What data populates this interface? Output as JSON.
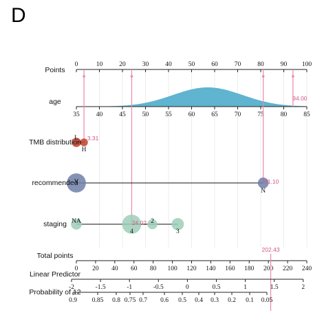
{
  "panel_label": "D",
  "chart_data": {
    "type": "nomogram",
    "rows": {
      "points": {
        "label": "Points",
        "ticks": [
          0,
          10,
          20,
          30,
          40,
          50,
          60,
          70,
          80,
          90,
          100
        ]
      },
      "age": {
        "label": "age",
        "ticks": [
          35,
          40,
          45,
          50,
          55,
          60,
          65,
          70,
          75,
          80,
          85
        ],
        "range": [
          35,
          85
        ],
        "density_mean": 63.5,
        "density_sd": 7.5,
        "value": "94.00",
        "value_points": 94
      },
      "tmb": {
        "label": "TMB distribution",
        "levels": [
          {
            "name": "L",
            "points": 0,
            "weight": 0.25
          },
          {
            "name": "H",
            "points": 3.31,
            "weight": 0.15
          }
        ],
        "value": "3.31",
        "value_points": 3.31
      },
      "recommended": {
        "label": "recommended",
        "levels": [
          {
            "name": "Y",
            "points": 0,
            "weight": 0.9
          },
          {
            "name": "N",
            "points": 81.1,
            "weight": 0.35
          }
        ],
        "value": "81.10",
        "value_points": 81.1
      },
      "staging": {
        "label": "staging",
        "levels": [
          {
            "name": "NA",
            "points": 0,
            "weight": 0.35
          },
          {
            "name": "4",
            "points": 24.02,
            "weight": 0.9
          },
          {
            "name": "2",
            "points": 33,
            "weight": 0.3
          },
          {
            "name": "3",
            "points": 44,
            "weight": 0.45
          }
        ],
        "value": "24.02",
        "value_points": 24.02
      },
      "total": {
        "label": "Total points",
        "ticks": [
          0,
          20,
          40,
          60,
          80,
          100,
          120,
          140,
          160,
          180,
          200,
          220,
          240
        ],
        "range": [
          0,
          240
        ],
        "value": "202.43",
        "value_points": 202.43
      },
      "linear": {
        "label": "Linear Predictor",
        "ticks": [
          "-2",
          "-1.5",
          "-1",
          "-0.5",
          "0",
          "0.5",
          "1",
          "1.5",
          "2"
        ]
      },
      "probability": {
        "label": "Probability of 12",
        "ticks": [
          "0.9",
          "0.85",
          "0.8",
          "0.75",
          "0.7",
          "0.6",
          "0.5",
          "0.4",
          "0.3",
          "0.2",
          "0.1",
          "0.05"
        ]
      }
    },
    "colors": {
      "density": "#5fb4cf",
      "tmb": "#c0402a",
      "recommended": "#6e7fa8",
      "staging": "#9ecfb8",
      "highlight": "#e88aa8",
      "annotation": "#d0588a"
    }
  }
}
